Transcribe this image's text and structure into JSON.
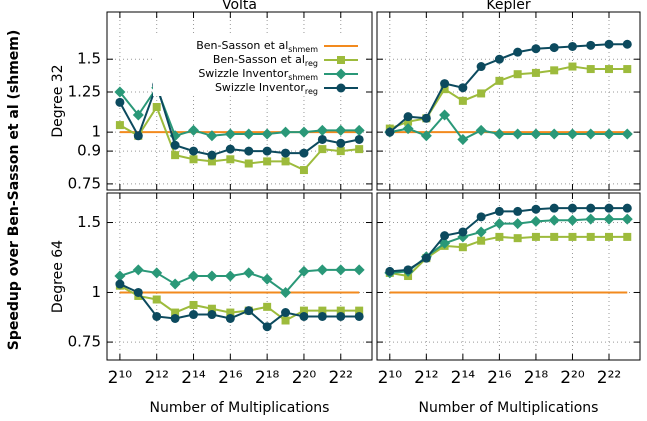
{
  "ylabel": "Speedup over Ben-Sasson et al (shmem)",
  "chart_data": [
    {
      "type": "line",
      "title": "Volta",
      "ylabel": "Degree 32",
      "xscale": "log2",
      "yscale": "log",
      "grid": true,
      "legend": "upper right",
      "x": [
        1024,
        2048,
        4096,
        8192,
        16384,
        32768,
        65536,
        131072,
        262144,
        524288,
        1048576,
        2097152,
        4194304,
        8388608
      ],
      "xlim": [
        630,
        13600000
      ],
      "xticks": [
        1024,
        4096,
        16384,
        65536,
        262144,
        1048576,
        4194304
      ],
      "ylim": [
        0.725,
        1.95
      ],
      "yticks": [
        0.75,
        0.9,
        1,
        1.25,
        1.5
      ],
      "series": [
        {
          "name": "Ben-Sasson et al",
          "name_sub": "shmem",
          "color": "#f28a1e",
          "marker": "none",
          "values": [
            1,
            1,
            1,
            1,
            1,
            1,
            1,
            1,
            1,
            1,
            1,
            1,
            1,
            1
          ]
        },
        {
          "name": "Ben-Sasson et al",
          "name_sub": "reg",
          "color": "#9dbb3c",
          "marker": "square",
          "values": [
            1.04,
            0.98,
            1.15,
            0.88,
            0.86,
            0.85,
            0.86,
            0.84,
            0.85,
            0.85,
            0.81,
            0.91,
            0.9,
            0.91
          ]
        },
        {
          "name": "Swizzle Inventor",
          "name_sub": "shmem",
          "color": "#2a9878",
          "marker": "diamond",
          "values": [
            1.25,
            1.1,
            1.28,
            0.98,
            1.01,
            0.98,
            0.99,
            0.99,
            0.99,
            1.0,
            1.0,
            1.01,
            1.01,
            1.01
          ]
        },
        {
          "name": "Swizzle Inventor",
          "name_sub": "reg",
          "color": "#0c4a5e",
          "marker": "circle",
          "values": [
            1.18,
            0.98,
            1.3,
            0.93,
            0.9,
            0.88,
            0.91,
            0.9,
            0.9,
            0.89,
            0.89,
            0.96,
            0.94,
            0.96
          ]
        }
      ]
    },
    {
      "type": "line",
      "title": "Kepler",
      "xscale": "log2",
      "yscale": "log",
      "grid": true,
      "x": [
        1024,
        2048,
        4096,
        8192,
        16384,
        32768,
        65536,
        131072,
        262144,
        524288,
        1048576,
        2097152,
        4194304,
        8388608
      ],
      "xlim": [
        630,
        13600000
      ],
      "xticks": [
        1024,
        4096,
        16384,
        65536,
        262144,
        1048576,
        4194304
      ],
      "ylim": [
        0.725,
        1.95
      ],
      "yticks": [
        0.75,
        0.9,
        1,
        1.25,
        1.5
      ],
      "series": [
        {
          "color": "#f28a1e",
          "marker": "none",
          "values": [
            1,
            1,
            1,
            1,
            1,
            1,
            1,
            1,
            1,
            1,
            1,
            1,
            1,
            1
          ]
        },
        {
          "color": "#9dbb3c",
          "marker": "square",
          "values": [
            1.02,
            1.06,
            1.08,
            1.27,
            1.19,
            1.24,
            1.33,
            1.38,
            1.39,
            1.41,
            1.44,
            1.42,
            1.42,
            1.42
          ]
        },
        {
          "color": "#2a9878",
          "marker": "diamond",
          "values": [
            1.0,
            1.02,
            0.98,
            1.1,
            0.96,
            1.01,
            0.99,
            0.99,
            0.99,
            0.99,
            0.99,
            0.99,
            0.99,
            0.99
          ]
        },
        {
          "color": "#0c4a5e",
          "marker": "circle",
          "values": [
            1.0,
            1.09,
            1.08,
            1.31,
            1.28,
            1.44,
            1.5,
            1.56,
            1.59,
            1.6,
            1.61,
            1.62,
            1.63,
            1.63
          ]
        }
      ]
    },
    {
      "type": "line",
      "ylabel": "Degree 64",
      "xlabel": "Number of Multiplications",
      "xscale": "log2",
      "yscale": "log",
      "grid": true,
      "x": [
        1024,
        2048,
        4096,
        8192,
        16384,
        32768,
        65536,
        131072,
        262144,
        524288,
        1048576,
        2097152,
        4194304,
        8388608
      ],
      "xlim": [
        630,
        13600000
      ],
      "xticks": [
        {
          "value": 1024,
          "label": "2¹⁰"
        },
        {
          "value": 4096,
          "label": "2¹²"
        },
        {
          "value": 16384,
          "label": "2¹⁴"
        },
        {
          "value": 65536,
          "label": "2¹⁶"
        },
        {
          "value": 262144,
          "label": "2¹⁸"
        },
        {
          "value": 1048576,
          "label": "2²⁰"
        },
        {
          "value": 4194304,
          "label": "2²²"
        }
      ],
      "ylim": [
        0.676,
        1.78
      ],
      "yticks": [
        0.75,
        1,
        1.5
      ],
      "series": [
        {
          "color": "#f28a1e",
          "marker": "none",
          "values": [
            1,
            1,
            1,
            1,
            1,
            1,
            1,
            1,
            1,
            1,
            1,
            1,
            1,
            1
          ]
        },
        {
          "color": "#9dbb3c",
          "marker": "square",
          "values": [
            1.04,
            0.98,
            0.96,
            0.89,
            0.93,
            0.91,
            0.89,
            0.9,
            0.92,
            0.85,
            0.9,
            0.9,
            0.9,
            0.9
          ]
        },
        {
          "color": "#2a9878",
          "marker": "diamond",
          "values": [
            1.1,
            1.14,
            1.12,
            1.05,
            1.1,
            1.1,
            1.1,
            1.12,
            1.08,
            1.0,
            1.13,
            1.14,
            1.14,
            1.14
          ]
        },
        {
          "color": "#0c4a5e",
          "marker": "circle",
          "values": [
            1.05,
            1.0,
            0.87,
            0.86,
            0.88,
            0.88,
            0.86,
            0.9,
            0.82,
            0.89,
            0.87,
            0.87,
            0.87,
            0.87
          ]
        }
      ]
    },
    {
      "type": "line",
      "xlabel": "Number of Multiplications",
      "xscale": "log2",
      "yscale": "log",
      "grid": true,
      "x": [
        1024,
        2048,
        4096,
        8192,
        16384,
        32768,
        65536,
        131072,
        262144,
        524288,
        1048576,
        2097152,
        4194304,
        8388608
      ],
      "xlim": [
        630,
        13600000
      ],
      "xticks": [
        {
          "value": 1024,
          "label": "2¹⁰"
        },
        {
          "value": 4096,
          "label": "2¹²"
        },
        {
          "value": 16384,
          "label": "2¹⁴"
        },
        {
          "value": 65536,
          "label": "2¹⁶"
        },
        {
          "value": 262144,
          "label": "2¹⁸"
        },
        {
          "value": 1048576,
          "label": "2²⁰"
        },
        {
          "value": 4194304,
          "label": "2²²"
        }
      ],
      "ylim": [
        0.676,
        1.78
      ],
      "yticks": [
        0.75,
        1,
        1.5
      ],
      "series": [
        {
          "color": "#f28a1e",
          "marker": "none",
          "values": [
            1,
            1,
            1,
            1,
            1,
            1,
            1,
            1,
            1,
            1,
            1,
            1,
            1,
            1
          ]
        },
        {
          "color": "#9dbb3c",
          "marker": "square",
          "values": [
            1.12,
            1.1,
            1.22,
            1.31,
            1.3,
            1.35,
            1.38,
            1.37,
            1.38,
            1.38,
            1.38,
            1.38,
            1.38,
            1.38
          ]
        },
        {
          "color": "#2a9878",
          "marker": "diamond",
          "values": [
            1.12,
            1.13,
            1.23,
            1.33,
            1.38,
            1.42,
            1.49,
            1.49,
            1.51,
            1.52,
            1.52,
            1.53,
            1.53,
            1.53
          ]
        },
        {
          "color": "#0c4a5e",
          "marker": "circle",
          "values": [
            1.13,
            1.14,
            1.22,
            1.39,
            1.42,
            1.55,
            1.6,
            1.6,
            1.62,
            1.63,
            1.63,
            1.63,
            1.63,
            1.63
          ]
        }
      ]
    }
  ]
}
